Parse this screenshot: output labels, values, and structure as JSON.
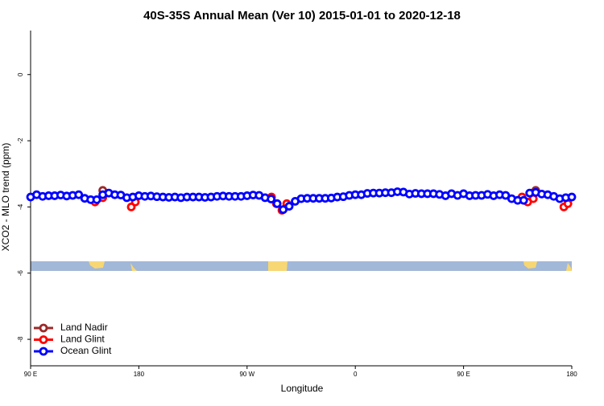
{
  "chart_data": {
    "type": "scatter",
    "title": "40S-35S Annual Mean (Ver 10)   2015-01-01 to 2020-12-18",
    "x_label": "Longitude",
    "y_label": "XCO2 - MLO trend (ppm)",
    "xlim": [
      90,
      540
    ],
    "ylim": [
      -8.8,
      1.33
    ],
    "xticks": [
      {
        "value": 90,
        "label": "90 E"
      },
      180,
      {
        "value": 270,
        "label": "90 W"
      },
      {
        "value": 360,
        "label": "0"
      },
      {
        "value": 450,
        "label": "90 E"
      },
      {
        "value": 540,
        "label": "180"
      }
    ],
    "yticks": [
      0,
      -2,
      -4,
      -6,
      -8
    ],
    "legend": "bottom-left",
    "series": [
      {
        "name": "Land Nadir",
        "color": "#9b2a2a",
        "x": [
          150,
          510
        ],
        "values": [
          -3.5,
          -3.5
        ]
      },
      {
        "name": "Land Glint",
        "color": "#ff0000",
        "x": [
          143.6,
          150,
          173.7,
          177.1,
          290.3,
          294.3,
          299,
          303,
          498.6,
          503.3,
          508,
          533.4,
          536.8
        ],
        "values": [
          -3.85,
          -3.72,
          -4.0,
          -3.85,
          -3.7,
          -3.9,
          -4.1,
          -3.9,
          -3.7,
          -3.85,
          -3.75,
          -4.0,
          -3.9
        ]
      },
      {
        "name": "Ocean Glint",
        "color": "#0000ff",
        "x": [
          90,
          95,
          100,
          105,
          110,
          115,
          120,
          125,
          130,
          135,
          140,
          145,
          150,
          155,
          160,
          165,
          170,
          175,
          180,
          185,
          190,
          195,
          200,
          205,
          210,
          215,
          220,
          225,
          230,
          235,
          240,
          245,
          250,
          255,
          260,
          265,
          270,
          275,
          280,
          285,
          290,
          295,
          300,
          305,
          310,
          315,
          320,
          325,
          330,
          335,
          340,
          345,
          350,
          355,
          360,
          365,
          370,
          375,
          380,
          385,
          390,
          395,
          400,
          405,
          410,
          415,
          420,
          425,
          430,
          435,
          440,
          445,
          450,
          455,
          460,
          465,
          470,
          475,
          480,
          485,
          490,
          495,
          500,
          505,
          510,
          515,
          520,
          525,
          530,
          535,
          540
        ],
        "values": [
          -3.7,
          -3.63,
          -3.68,
          -3.66,
          -3.66,
          -3.64,
          -3.67,
          -3.65,
          -3.63,
          -3.74,
          -3.78,
          -3.78,
          -3.63,
          -3.58,
          -3.63,
          -3.64,
          -3.72,
          -3.7,
          -3.66,
          -3.68,
          -3.67,
          -3.69,
          -3.7,
          -3.71,
          -3.7,
          -3.72,
          -3.7,
          -3.7,
          -3.7,
          -3.71,
          -3.7,
          -3.68,
          -3.67,
          -3.68,
          -3.68,
          -3.68,
          -3.66,
          -3.64,
          -3.65,
          -3.72,
          -3.76,
          -3.9,
          -4.08,
          -3.98,
          -3.83,
          -3.75,
          -3.74,
          -3.74,
          -3.74,
          -3.74,
          -3.73,
          -3.7,
          -3.69,
          -3.65,
          -3.63,
          -3.63,
          -3.59,
          -3.58,
          -3.58,
          -3.57,
          -3.57,
          -3.54,
          -3.55,
          -3.61,
          -3.59,
          -3.6,
          -3.6,
          -3.6,
          -3.62,
          -3.66,
          -3.6,
          -3.65,
          -3.6,
          -3.66,
          -3.65,
          -3.65,
          -3.62,
          -3.66,
          -3.63,
          -3.65,
          -3.75,
          -3.8,
          -3.8,
          -3.58,
          -3.56,
          -3.61,
          -3.63,
          -3.68,
          -3.75,
          -3.72,
          -3.7
        ]
      }
    ]
  }
}
